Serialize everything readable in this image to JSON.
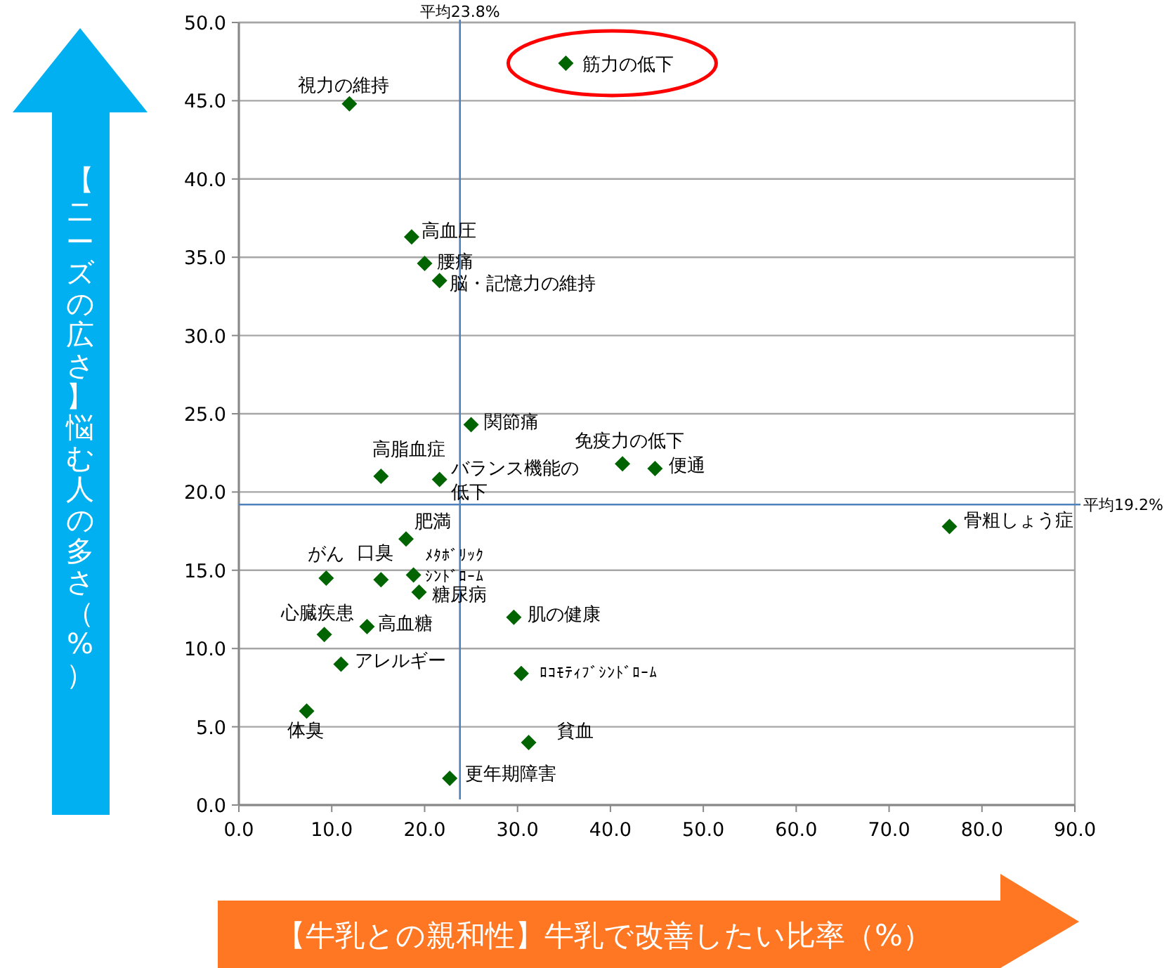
{
  "chart_data": {
    "type": "scatter",
    "xlabel": "【牛乳との親和性】牛乳で改善したい比率（%）",
    "ylabel": "【ニーズの広さ】悩む人の多さ（%）",
    "x": [
      35.2,
      11.9,
      18.6,
      20.0,
      21.6,
      25.0,
      15.3,
      21.6,
      41.3,
      44.8,
      76.5,
      18.0,
      9.4,
      15.3,
      18.8,
      19.4,
      29.6,
      9.2,
      13.8,
      11.0,
      30.4,
      7.3,
      31.2,
      22.7
    ],
    "values": [
      47.4,
      44.8,
      36.3,
      34.6,
      33.5,
      24.3,
      21.0,
      20.8,
      21.8,
      21.5,
      17.8,
      17.0,
      14.5,
      14.4,
      14.7,
      13.6,
      12.0,
      10.9,
      11.4,
      9.0,
      8.4,
      6.0,
      4.0,
      1.7
    ],
    "color": "#006400",
    "marker": "diamond",
    "annotations": [
      {
        "text": "筋力の低下",
        "x": 35.2,
        "y": 47.4
      },
      {
        "text": "視力の維持",
        "x": 11.9,
        "y": 44.8
      },
      {
        "text": "高血圧",
        "x": 18.6,
        "y": 36.3
      },
      {
        "text": "腰痛",
        "x": 20.0,
        "y": 34.6
      },
      {
        "text": "脳・記憶力の維持",
        "x": 21.6,
        "y": 33.5
      },
      {
        "text": "関節痛",
        "x": 25.0,
        "y": 24.3
      },
      {
        "text": "高脂血症",
        "x": 15.3,
        "y": 21.0
      },
      {
        "text": "バランス機能の低下",
        "x": 21.6,
        "y": 20.8
      },
      {
        "text": "免疫力の低下",
        "x": 41.3,
        "y": 21.8
      },
      {
        "text": "便通",
        "x": 44.8,
        "y": 21.5
      },
      {
        "text": "骨粗しょう症",
        "x": 76.5,
        "y": 17.8
      },
      {
        "text": "肥満",
        "x": 18.0,
        "y": 17.0
      },
      {
        "text": "がん",
        "x": 9.4,
        "y": 14.5
      },
      {
        "text": "口臭",
        "x": 15.3,
        "y": 14.4
      },
      {
        "text": "ﾒﾀﾎﾞﾘｯｸｼﾝﾄﾞﾛｰﾑ",
        "x": 18.8,
        "y": 14.7
      },
      {
        "text": "糖尿病",
        "x": 19.4,
        "y": 13.6
      },
      {
        "text": "肌の健康",
        "x": 29.6,
        "y": 12.0
      },
      {
        "text": "心臓疾患",
        "x": 9.2,
        "y": 10.9
      },
      {
        "text": "高血糖",
        "x": 13.8,
        "y": 11.4
      },
      {
        "text": "アレルギー",
        "x": 11.0,
        "y": 9.0
      },
      {
        "text": "ﾛｺﾓﾃｨﾌﾞｼﾝﾄﾞﾛｰﾑ",
        "x": 30.4,
        "y": 8.4
      },
      {
        "text": "体臭",
        "x": 7.3,
        "y": 6.0
      },
      {
        "text": "貧血",
        "x": 31.2,
        "y": 4.0
      },
      {
        "text": "更年期障害",
        "x": 22.7,
        "y": 1.7
      }
    ],
    "ref_lines": [
      {
        "axis": "x",
        "value": 23.8,
        "label": "平均23.8%",
        "color": "#4f81bd"
      },
      {
        "axis": "y",
        "value": 19.2,
        "label": "平均19.2%",
        "color": "#4f81bd"
      }
    ],
    "xlim": [
      0,
      90
    ],
    "xticks": [
      {
        "value": 0,
        "label": "0.0"
      },
      {
        "value": 10,
        "label": "10.0"
      },
      {
        "value": 20,
        "label": "20.0"
      },
      {
        "value": 30,
        "label": "30.0"
      },
      {
        "value": 40,
        "label": "40.0"
      },
      {
        "value": 50,
        "label": "50.0"
      },
      {
        "value": 60,
        "label": "60.0"
      },
      {
        "value": 70,
        "label": "70.0"
      },
      {
        "value": 80,
        "label": "80.0"
      },
      {
        "value": 90,
        "label": "90.0"
      }
    ],
    "ylim": [
      0,
      50
    ],
    "yticks": [
      {
        "value": 0,
        "label": "0.0"
      },
      {
        "value": 5,
        "label": "5.0"
      },
      {
        "value": 10,
        "label": "10.0"
      },
      {
        "value": 15,
        "label": "15.0"
      },
      {
        "value": 20,
        "label": "20.0"
      },
      {
        "value": 25,
        "label": "25.0"
      },
      {
        "value": 30,
        "label": "30.0"
      },
      {
        "value": 35,
        "label": "35.0"
      },
      {
        "value": 40,
        "label": "40.0"
      },
      {
        "value": 45,
        "label": "45.0"
      },
      {
        "value": 50,
        "label": "50.0"
      }
    ],
    "grid": "y"
  }
}
